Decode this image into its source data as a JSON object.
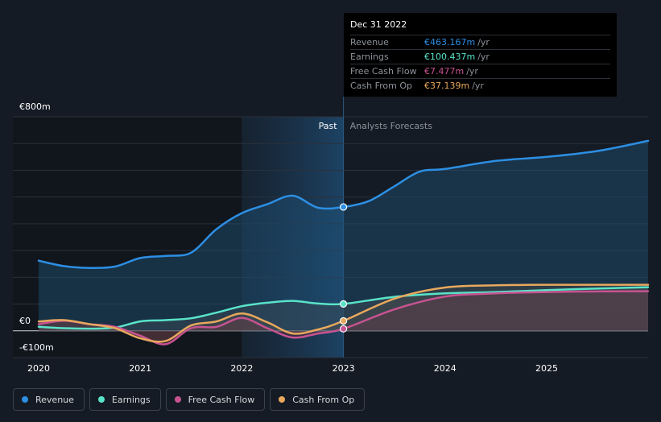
{
  "chart_data": {
    "type": "line",
    "x_ticks": [
      "2020",
      "2021",
      "2022",
      "2023",
      "2024",
      "2025"
    ],
    "y_tick_labels": [
      "€800m",
      "€0",
      "-€100m"
    ],
    "ylim": [
      -100,
      800
    ],
    "xlim": [
      2019.8,
      2026.0
    ],
    "past_label": "Past",
    "forecast_label": "Analysts Forecasts",
    "forecast_start": 2023.0,
    "highlight_start": 2022.0,
    "series": [
      {
        "name": "Revenue",
        "color": "#2d8fe3",
        "x": [
          2020,
          2020.25,
          2020.5,
          2020.75,
          2021,
          2021.25,
          2021.5,
          2021.75,
          2022,
          2022.25,
          2022.5,
          2022.75,
          2023,
          2023.25,
          2023.5,
          2023.75,
          2024,
          2024.5,
          2025,
          2025.5,
          2026
        ],
        "values": [
          262,
          242,
          235,
          240,
          272,
          280,
          292,
          380,
          440,
          473,
          505,
          460,
          463,
          485,
          540,
          595,
          605,
          635,
          650,
          672,
          710
        ]
      },
      {
        "name": "Earnings",
        "color": "#59e3c9",
        "x": [
          2020,
          2020.25,
          2020.5,
          2020.75,
          2021,
          2021.25,
          2021.5,
          2021.75,
          2022,
          2022.25,
          2022.5,
          2022.75,
          2023,
          2023.5,
          2024,
          2024.5,
          2025,
          2025.5,
          2026
        ],
        "values": [
          15,
          10,
          8,
          12,
          35,
          40,
          47,
          68,
          92,
          105,
          112,
          102,
          100.437,
          127,
          140,
          145,
          152,
          158,
          163
        ]
      },
      {
        "name": "Free Cash Flow",
        "color": "#c75391",
        "x": [
          2020,
          2020.25,
          2020.5,
          2020.75,
          2021,
          2021.25,
          2021.5,
          2021.75,
          2022,
          2022.25,
          2022.5,
          2022.75,
          2023,
          2023.5,
          2024,
          2024.5,
          2025,
          2025.5,
          2026
        ],
        "values": [
          25,
          38,
          25,
          15,
          -18,
          -50,
          10,
          15,
          48,
          10,
          -25,
          -10,
          7.477,
          80,
          128,
          140,
          145,
          147,
          148
        ]
      },
      {
        "name": "Cash From Op",
        "color": "#e8a85d",
        "x": [
          2020,
          2020.25,
          2020.5,
          2020.75,
          2021,
          2021.25,
          2021.5,
          2021.75,
          2022,
          2022.25,
          2022.5,
          2022.75,
          2023,
          2023.5,
          2024,
          2024.5,
          2025,
          2025.5,
          2026
        ],
        "values": [
          35,
          40,
          25,
          10,
          -28,
          -38,
          20,
          35,
          65,
          32,
          -10,
          5,
          37.139,
          120,
          162,
          170,
          172,
          172,
          172
        ]
      }
    ]
  },
  "tooltip": {
    "date": "Dec 31 2022",
    "rows": [
      {
        "label": "Revenue",
        "value": "€463.167m",
        "unit": "/yr",
        "color": "#2d8fe3"
      },
      {
        "label": "Earnings",
        "value": "€100.437m",
        "unit": "/yr",
        "color": "#59e3c9"
      },
      {
        "label": "Free Cash Flow",
        "value": "€7.477m",
        "unit": "/yr",
        "color": "#c75391"
      },
      {
        "label": "Cash From Op",
        "value": "€37.139m",
        "unit": "/yr",
        "color": "#e8a85d"
      }
    ]
  },
  "legend": [
    {
      "label": "Revenue",
      "color": "#2d8fe3"
    },
    {
      "label": "Earnings",
      "color": "#59e3c9"
    },
    {
      "label": "Free Cash Flow",
      "color": "#c75391"
    },
    {
      "label": "Cash From Op",
      "color": "#e8a85d"
    }
  ]
}
